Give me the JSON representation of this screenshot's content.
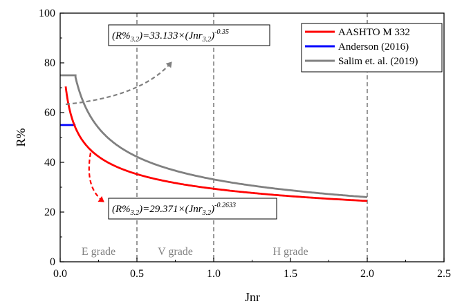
{
  "chart_data": {
    "type": "line",
    "xlabel": "Jnr",
    "ylabel": "R%",
    "xlim": [
      0.0,
      2.5
    ],
    "ylim": [
      0,
      100
    ],
    "x_ticks": [
      "0.0",
      "0.5",
      "1.0",
      "1.5",
      "2.0",
      "2.5"
    ],
    "y_ticks": [
      "0",
      "20",
      "40",
      "60",
      "80",
      "100"
    ],
    "grid": false,
    "legend_position": "top-right",
    "series": [
      {
        "name": "AASHTO M 332",
        "color": "#ff0000",
        "formula": {
          "a": 29.371,
          "b": -0.2633,
          "xmin": 0.036,
          "xmax": 2.0
        }
      },
      {
        "name": "Anderson (2016)",
        "color": "#0000ff",
        "x": [
          0.0,
          0.1
        ],
        "y": [
          55,
          55
        ]
      },
      {
        "name": "Salim et. al. (2019)",
        "color": "#808080",
        "flat": {
          "x": [
            0.0,
            0.1
          ],
          "y": 75
        },
        "formula": {
          "a": 33.133,
          "b": -0.35,
          "xmin": 0.1,
          "xmax": 2.0
        }
      }
    ],
    "vertical_lines": [
      0.5,
      1.0,
      2.0
    ],
    "regions": [
      {
        "label": "E grade",
        "x": 0.25
      },
      {
        "label": "V grade",
        "x": 0.75
      },
      {
        "label": "H grade",
        "x": 1.5
      }
    ],
    "annotations": [
      {
        "id": "gray-eq",
        "prefix": "(R%",
        "sub1": "3.2",
        "mid": ")=33.133×(Jnr",
        "sub2": "3.2",
        "close": ")",
        "sup": "-0.35"
      },
      {
        "id": "red-eq",
        "prefix": "(R%",
        "sub1": "3.2",
        "mid": ")=29.371×(Jnr",
        "sub2": "3.2",
        "close": ")",
        "sup": "-0.2633"
      }
    ]
  }
}
